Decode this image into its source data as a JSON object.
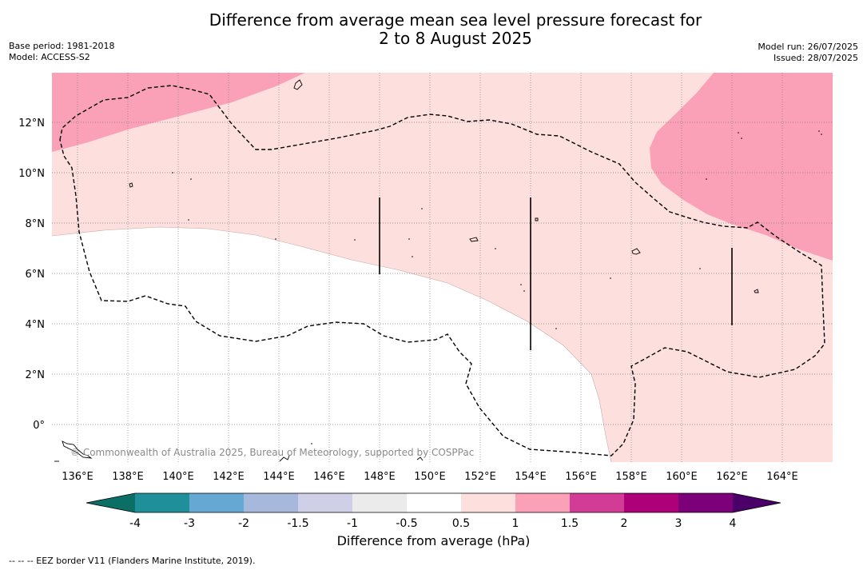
{
  "title_line1": "Difference from average mean sea level pressure forecast for",
  "title_line2": "2 to 8 August 2025",
  "base_period": "Base period: 1981-2018",
  "model": "Model: ACCESS-S2",
  "model_run": "Model run: 26/07/2025",
  "issued": "Issued: 28/07/2025",
  "credit": "© Commonwealth of Australia 2025, Bureau of Meteorology, supported by COSPPac",
  "footer": "--  --  -- EEZ border V11 (Flanders Marine Institute, 2019).",
  "lon_labels": [
    "136°E",
    "138°E",
    "140°E",
    "142°E",
    "144°E",
    "146°E",
    "148°E",
    "150°E",
    "152°E",
    "154°E",
    "156°E",
    "158°E",
    "160°E",
    "162°E",
    "164°E"
  ],
  "lat_labels": [
    "12°N",
    "10°N",
    "8°N",
    "6°N",
    "4°N",
    "2°N",
    "0°"
  ],
  "colorbar": {
    "label": "Difference from average (hPa)",
    "ticks": [
      "-4",
      "-3",
      "-2",
      "-1.5",
      "-1",
      "-0.5",
      "0.5",
      "1",
      "1.5",
      "2",
      "3",
      "4"
    ],
    "colors": [
      "#1f8f99",
      "#66a8d4",
      "#a6b9dd",
      "#cfd0e8",
      "#ebebeb",
      "#ffffff",
      "#fde0de",
      "#fba1b7",
      "#d23c97",
      "#ad0079",
      "#7b007a"
    ],
    "under_color": "#0c6f66",
    "over_color": "#4a0068"
  },
  "map_colors": {
    "light_pink": "#fddfdd",
    "pink": "#faa1b7",
    "white": "#ffffff"
  }
}
